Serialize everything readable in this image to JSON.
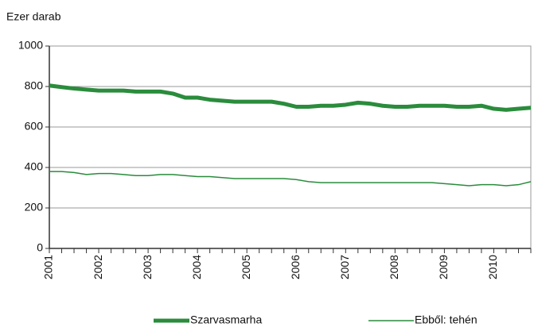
{
  "chart_data": {
    "type": "line",
    "y_axis_label": "Ezer darab",
    "categories": [
      "2001",
      null,
      null,
      null,
      "2002",
      null,
      null,
      null,
      "2003",
      null,
      null,
      null,
      "2004",
      null,
      null,
      null,
      "2005",
      null,
      null,
      null,
      "2006",
      null,
      null,
      null,
      "2007",
      null,
      null,
      null,
      "2008",
      null,
      null,
      null,
      "2009",
      null,
      null,
      null,
      "2010",
      null,
      null,
      null
    ],
    "series": [
      {
        "name": "Szarvasmarha",
        "color": "#2a8c3c",
        "width": 5,
        "values": [
          805,
          797,
          790,
          785,
          780,
          780,
          780,
          775,
          775,
          775,
          765,
          745,
          745,
          735,
          730,
          725,
          725,
          725,
          725,
          715,
          700,
          700,
          705,
          705,
          710,
          720,
          715,
          705,
          700,
          700,
          705,
          705,
          705,
          700,
          700,
          705,
          690,
          685,
          690,
          695
        ]
      },
      {
        "name": "Ebből: tehén",
        "color": "#2a8c3c",
        "width": 1.5,
        "values": [
          380,
          380,
          375,
          365,
          370,
          370,
          365,
          360,
          360,
          365,
          365,
          360,
          355,
          355,
          350,
          345,
          345,
          345,
          345,
          345,
          340,
          330,
          325,
          325,
          325,
          325,
          325,
          325,
          325,
          325,
          325,
          325,
          320,
          315,
          310,
          315,
          315,
          310,
          315,
          330
        ]
      }
    ],
    "ylim": [
      0,
      1000
    ],
    "yticks": [
      0,
      200,
      400,
      600,
      800,
      1000
    ],
    "grid": true
  }
}
